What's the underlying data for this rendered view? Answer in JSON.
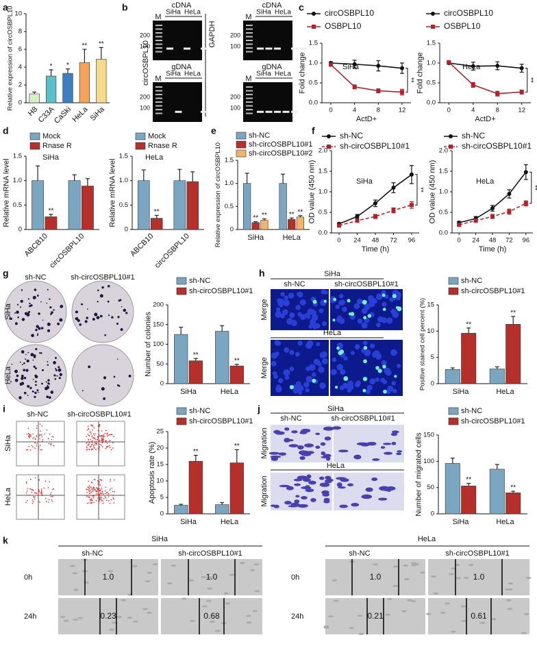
{
  "chart_data": [
    {
      "panel": "a",
      "type": "bar",
      "ylabel": "Relative expression of circOSBPL10",
      "categories": [
        "H8",
        "C33A",
        "CaSki",
        "HeLa",
        "SiHa"
      ],
      "values": [
        1.0,
        3.0,
        3.3,
        4.5,
        4.9
      ],
      "errors": [
        0.2,
        0.7,
        0.5,
        1.5,
        1.3
      ],
      "significance": [
        null,
        "*",
        "*",
        "**",
        "**"
      ],
      "colors": [
        "#d7efc4",
        "#5bc0c8",
        "#3e7fbf",
        "#f5a35a",
        "#f6d98a"
      ],
      "ylim": [
        0,
        10
      ],
      "yticks": [
        0,
        2,
        4,
        6,
        8,
        10
      ]
    },
    {
      "panel": "c",
      "type": "line",
      "title": "SiHa",
      "ylabel": "Fold change",
      "xlabel": "ActD+",
      "x": [
        0,
        4,
        8,
        12
      ],
      "xlim": [
        -1.5,
        13.5
      ],
      "xticks": [
        0,
        4,
        8,
        12
      ],
      "ylim": [
        0,
        1.5
      ],
      "yticks": [
        {
          "value": 0,
          "label": "0.0"
        },
        0.5,
        {
          "value": 1,
          "label": "1.0"
        },
        1.5
      ],
      "annotation": "**",
      "series": [
        {
          "name": "circOSBPL10",
          "color": "#111111",
          "marker": "circle",
          "line_style": "solid",
          "values": [
            1.0,
            0.97,
            0.93,
            0.87
          ],
          "errors": [
            0.03,
            0.1,
            0.13,
            0.13
          ]
        },
        {
          "name": "OSBPL10",
          "color": "#b5202a",
          "marker": "square",
          "line_style": "solid",
          "values": [
            0.96,
            0.4,
            0.3,
            0.27
          ],
          "errors": [
            0.02,
            0.05,
            0.05,
            0.07
          ]
        }
      ]
    },
    {
      "type": "line",
      "title": "HeLa",
      "ylabel": "Fold change",
      "xlabel": "ActD+",
      "x": [
        0,
        4,
        8,
        12
      ],
      "xlim": [
        -1.5,
        13.5
      ],
      "xticks": [
        0,
        4,
        8,
        12
      ],
      "ylim": [
        0,
        1.5
      ],
      "yticks": [
        {
          "value": 0,
          "label": "0.0"
        },
        0.5,
        {
          "value": 1,
          "label": "1.0"
        },
        1.5
      ],
      "annotation": "**",
      "series": [
        {
          "name": "circOSBPL10",
          "color": "#111111",
          "marker": "circle",
          "line_style": "solid",
          "values": [
            1.0,
            0.92,
            0.93,
            0.87
          ],
          "errors": [
            0.03,
            0.1,
            0.1,
            0.1
          ]
        },
        {
          "name": "OSBPL10",
          "color": "#b5202a",
          "marker": "square",
          "line_style": "solid",
          "values": [
            1.02,
            0.45,
            0.23,
            0.27
          ],
          "errors": [
            0.02,
            0.06,
            0.06,
            0.05
          ]
        }
      ]
    },
    {
      "panel": "d",
      "type": "bar",
      "title": "SiHa",
      "ylabel": "Relative mRNA level",
      "categories": [
        "ABCB10",
        "circOSBPL10"
      ],
      "ylim": [
        0,
        1.5
      ],
      "yticks": [
        0,
        0.5,
        {
          "value": 1,
          "label": "1.0"
        },
        1.5
      ],
      "series": [
        {
          "name": "Mock",
          "color": "#7aa6c2",
          "values": [
            1.0,
            1.0
          ],
          "errors": [
            0.3,
            0.12
          ]
        },
        {
          "name": "Rnase R",
          "color": "#b5302a",
          "values": [
            0.26,
            0.89
          ],
          "errors": [
            0.05,
            0.15
          ],
          "significance": [
            "**",
            null
          ]
        }
      ]
    },
    {
      "type": "bar",
      "title": "HeLa",
      "ylabel": "Relative mRNA level",
      "categories": [
        "ABCB10",
        "circOSBPL10"
      ],
      "ylim": [
        0,
        1.5
      ],
      "yticks": [
        0,
        0.5,
        {
          "value": 1,
          "label": "1.0"
        },
        1.5
      ],
      "series": [
        {
          "name": "Mock",
          "color": "#7aa6c2",
          "values": [
            1.0,
            1.0
          ],
          "errors": [
            0.22,
            0.23
          ]
        },
        {
          "name": "Rnase R",
          "color": "#b5302a",
          "values": [
            0.23,
            0.98
          ],
          "errors": [
            0.06,
            0.2
          ],
          "significance": [
            "**",
            null
          ]
        }
      ]
    },
    {
      "panel": "e",
      "type": "bar",
      "ylabel": "Relative expression of circOSBPL10",
      "categories": [
        "SiHa",
        "HeLa"
      ],
      "ylim": [
        0,
        1.5
      ],
      "yticks": [
        0,
        0.5,
        {
          "value": 1,
          "label": "1.0"
        },
        1.5
      ],
      "series": [
        {
          "name": "sh-NC",
          "color": "#7aa6c2",
          "values": [
            1.0,
            1.0
          ],
          "errors": [
            0.22,
            0.2
          ]
        },
        {
          "name": "sh-circOSBPL10#1",
          "color": "#b5302a",
          "values": [
            0.15,
            0.22
          ],
          "errors": [
            0.02,
            0.03
          ],
          "significance": [
            "**",
            "**"
          ]
        },
        {
          "name": "sh-circOSBPL10#2",
          "color": "#f2b36b",
          "values": [
            0.2,
            0.27
          ],
          "errors": [
            0.03,
            0.03
          ],
          "significance": [
            "**",
            "**"
          ]
        }
      ]
    },
    {
      "panel": "f",
      "type": "line",
      "title": "SiHa",
      "ylabel": "OD value (450 nm)",
      "xlabel": "Time (h)",
      "x": [
        0,
        24,
        48,
        72,
        96
      ],
      "xlim": [
        -10,
        106
      ],
      "xticks": [
        0,
        24,
        48,
        72,
        96
      ],
      "ylim": [
        0,
        2
      ],
      "yticks": [
        {
          "value": 0,
          "label": "0.0"
        },
        0.5,
        {
          "value": 1,
          "label": "1.0"
        },
        1.5,
        {
          "value": 2,
          "label": "2.0"
        }
      ],
      "annotation": "**",
      "series": [
        {
          "name": "sh-NC",
          "color": "#111111",
          "marker": "circle",
          "line_style": "solid",
          "values": [
            0.22,
            0.4,
            0.72,
            1.1,
            1.42
          ],
          "errors": [
            0.03,
            0.05,
            0.08,
            0.12,
            0.22
          ]
        },
        {
          "name": "sh-circOSBPL10#1",
          "color": "#b5202a",
          "marker": "square",
          "line_style": "dashed",
          "values": [
            0.18,
            0.3,
            0.4,
            0.55,
            0.68
          ],
          "errors": [
            0.02,
            0.04,
            0.05,
            0.06,
            0.08
          ]
        }
      ]
    },
    {
      "type": "line",
      "title": "HeLa",
      "ylabel": "OD value (450 nm)",
      "xlabel": "Time (h)",
      "x": [
        0,
        24,
        48,
        72,
        96
      ],
      "xlim": [
        -10,
        106
      ],
      "xticks": [
        0,
        24,
        48,
        72,
        96
      ],
      "ylim": [
        0,
        2
      ],
      "yticks": [
        {
          "value": 0,
          "label": "0.0"
        },
        0.5,
        {
          "value": 1,
          "label": "1.0"
        },
        1.5,
        {
          "value": 2,
          "label": "2.0"
        }
      ],
      "annotation": "**",
      "series": [
        {
          "name": "sh-NC",
          "color": "#111111",
          "marker": "circle",
          "line_style": "solid",
          "values": [
            0.25,
            0.35,
            0.6,
            0.95,
            1.48
          ],
          "errors": [
            0.03,
            0.05,
            0.07,
            0.1,
            0.18
          ]
        },
        {
          "name": "sh-circOSBPL10#1",
          "color": "#b5202a",
          "marker": "square",
          "line_style": "dashed",
          "values": [
            0.2,
            0.3,
            0.4,
            0.52,
            0.72
          ],
          "errors": [
            0.02,
            0.03,
            0.05,
            0.06,
            0.06
          ]
        }
      ]
    },
    {
      "type": "bar",
      "ylabel": "Number of colonies",
      "categories": [
        "SiHa",
        "HeLa"
      ],
      "ylim": [
        0,
        200
      ],
      "yticks": [
        0,
        50,
        100,
        150,
        200
      ],
      "series": [
        {
          "name": "sh-NC",
          "color": "#7aa6c2",
          "values": [
            125,
            133
          ],
          "errors": [
            18,
            14
          ]
        },
        {
          "name": "sh-circOSBPL10#1",
          "color": "#b5302a",
          "values": [
            58,
            45
          ],
          "errors": [
            6,
            4
          ],
          "significance": [
            "**",
            "**"
          ]
        }
      ]
    },
    {
      "type": "bar",
      "ylabel": "Positive stained cell percent (%)",
      "categories": [
        "SiHa",
        "HeLa"
      ],
      "ylim": [
        0,
        15
      ],
      "yticks": [
        0,
        5,
        10,
        15
      ],
      "series": [
        {
          "name": "sh-NC",
          "color": "#7aa6c2",
          "values": [
            2.7,
            2.8
          ],
          "errors": [
            0.3,
            0.4
          ]
        },
        {
          "name": "sh-circOSBPL10#1",
          "color": "#b5302a",
          "values": [
            9.6,
            11.3
          ],
          "errors": [
            1.0,
            1.5
          ],
          "significance": [
            "**",
            "**"
          ]
        }
      ]
    },
    {
      "type": "bar",
      "ylabel": "Apoptosis rate (%)",
      "categories": [
        "SiHa",
        "HeLa"
      ],
      "ylim": [
        0,
        25
      ],
      "yticks": [
        0,
        5,
        10,
        15,
        20,
        25
      ],
      "series": [
        {
          "name": "sh-NC",
          "color": "#7aa6c2",
          "values": [
            2.6,
            2.8
          ],
          "errors": [
            0.3,
            0.6
          ]
        },
        {
          "name": "sh-circOSBPL10#1",
          "color": "#b5302a",
          "values": [
            16,
            15.5
          ],
          "errors": [
            1.8,
            4
          ]
        }
      ],
      "significance_all": [
        "**",
        "**"
      ]
    },
    {
      "type": "bar",
      "ylabel": "Number of migrated cells",
      "categories": [
        "SiHa",
        "HeLa"
      ],
      "ylim": [
        0,
        150
      ],
      "yticks": [
        0,
        50,
        100,
        150
      ],
      "series": [
        {
          "name": "sh-NC",
          "color": "#7aa6c2",
          "values": [
            96,
            85
          ],
          "errors": [
            10,
            9
          ]
        },
        {
          "name": "sh-circOSBPL10#1",
          "color": "#b5302a",
          "values": [
            53,
            40
          ],
          "errors": [
            5,
            3
          ],
          "significance": [
            "**",
            "**"
          ]
        }
      ]
    }
  ],
  "gel_b": {
    "panel": "b",
    "targets": [
      "circOSBPL10",
      "GAPDH"
    ],
    "blocks": [
      {
        "title": "cDNA",
        "marker": "M",
        "lanes": [
          "SiHa",
          "HeLa"
        ],
        "sizes": [
          200,
          100
        ]
      },
      {
        "title": "gDNA",
        "marker": "M",
        "lanes": [
          "SiHa",
          "HeLa"
        ],
        "sizes": [
          200,
          100
        ]
      },
      {
        "title": "cDNA",
        "marker": "M",
        "lanes": [
          "SiHa",
          "HeLa"
        ],
        "sizes": [
          200,
          100
        ]
      },
      {
        "title": "gDNA",
        "marker": "M",
        "lanes": [
          "SiHa",
          "HeLa"
        ],
        "sizes": [
          200,
          100
        ]
      }
    ]
  },
  "colony_g": {
    "panel": "g",
    "columns": [
      "sh-NC",
      "sh-circOSBPL10#1"
    ],
    "rows": [
      "SiHa",
      "HeLa"
    ]
  },
  "tunel_h": {
    "panel": "h",
    "columns": [
      "sh-NC",
      "sh-circOSBPL10#1"
    ],
    "groups": [
      {
        "cell": "SiHa",
        "row": "Merge"
      },
      {
        "cell": "HeLa",
        "row": "Merge"
      }
    ]
  },
  "flow_i": {
    "panel": "i",
    "columns": [
      "sh-NC",
      "sh-circOSBPL10#1"
    ],
    "rows": [
      "SiHa",
      "HeLa"
    ]
  },
  "transwell_j": {
    "panel": "j",
    "columns": [
      "sh-NC",
      "sh-circOSBPL10#1"
    ],
    "groups": [
      {
        "cell": "SiHa",
        "row": "Migration"
      },
      {
        "cell": "HeLa",
        "row": "Migration"
      }
    ]
  },
  "scratch_k": {
    "panel": "k",
    "groups": [
      {
        "cell": "SiHa",
        "columns": [
          "sh-NC",
          "sh-circOSBPL10#1"
        ],
        "rows": [
          "0h",
          "24h"
        ],
        "values": [
          [
            "1.0",
            "1.0"
          ],
          [
            "0.23",
            "0.68"
          ]
        ]
      },
      {
        "cell": "HeLa",
        "columns": [
          "sh-NC",
          "sh-circOSBPL10#1"
        ],
        "rows": [
          "0h",
          "24h"
        ],
        "values": [
          [
            "1.0",
            "1.0"
          ],
          [
            "0.21",
            "0.61"
          ]
        ]
      }
    ]
  }
}
